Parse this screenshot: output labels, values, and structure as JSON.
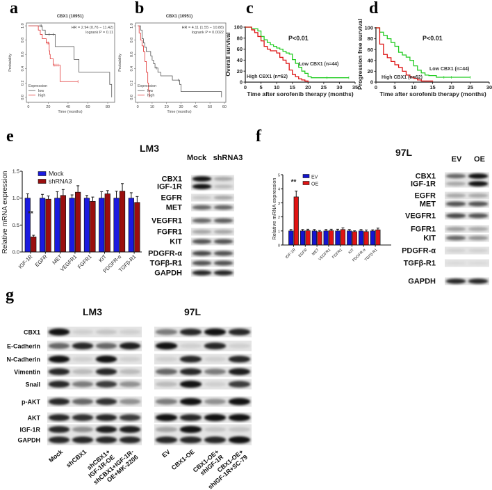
{
  "panel_labels": [
    "a",
    "b",
    "c",
    "d",
    "e",
    "f",
    "g"
  ],
  "colors": {
    "km_low": "#555555",
    "km_high": "#e03030",
    "gp_low": "#22cc22",
    "gp_high": "#dd1111",
    "e_mock": "#1a1ae0",
    "e_sh": "#9a0e0e",
    "f_ev": "#1414d0",
    "f_oe": "#e01414"
  },
  "chart_data": [
    {
      "type": "line",
      "title": "CBX1 (10951)",
      "xlabel": "Time (months)",
      "ylabel": "Probability",
      "xlim": [
        0,
        85
      ],
      "ylim": [
        0,
        1
      ],
      "xticks": [
        "0",
        "20",
        "40",
        "60",
        "80"
      ],
      "yticks": [
        "0.0",
        "0.2",
        "0.4",
        "0.6",
        "0.8",
        "1.0"
      ],
      "annotations": [
        "HR = 2.94 (0.76 − 11.42)",
        "logrank P = 0.11"
      ],
      "legend_title": "Expression",
      "series": [
        {
          "name": "low",
          "points": [
            [
              0,
              1
            ],
            [
              14,
              0.94
            ],
            [
              17,
              0.88
            ],
            [
              27,
              0.71
            ],
            [
              46,
              0.53
            ],
            [
              51,
              0.35
            ],
            [
              82,
              0.18
            ],
            [
              84,
              0
            ]
          ],
          "censored": [
            12,
            13,
            21,
            25
          ]
        },
        {
          "name": "high",
          "points": [
            [
              0,
              1
            ],
            [
              10,
              0.94
            ],
            [
              12,
              0.88
            ],
            [
              14,
              0.82
            ],
            [
              18,
              0.76
            ],
            [
              21,
              0.65
            ],
            [
              21.5,
              0.6
            ],
            [
              22,
              0.54
            ],
            [
              25,
              0.45
            ],
            [
              32,
              0.22
            ],
            [
              50,
              0.22
            ]
          ],
          "censored": [
            19,
            20,
            26,
            28,
            30,
            50
          ]
        }
      ]
    },
    {
      "type": "line",
      "title": "CBX1 (10951)",
      "xlabel": "Time (months)",
      "ylabel": "Probability",
      "xlim": [
        0,
        60
      ],
      "ylim": [
        0,
        1
      ],
      "xticks": [
        "0",
        "10",
        "20",
        "30",
        "40",
        "50",
        "60"
      ],
      "yticks": [
        "0.0",
        "0.2",
        "0.4",
        "0.6",
        "0.8",
        "1.0"
      ],
      "annotations": [
        "HR = 4.11 (1.55 − 10.88)",
        "logrank P = 0.0022"
      ],
      "legend_title": "Expression",
      "series": [
        {
          "name": "low",
          "points": [
            [
              0,
              1
            ],
            [
              2,
              0.94
            ],
            [
              3,
              0.82
            ],
            [
              4,
              0.76
            ],
            [
              5,
              0.7
            ],
            [
              6,
              0.64
            ],
            [
              9,
              0.58
            ],
            [
              10,
              0.52
            ],
            [
              11,
              0.47
            ],
            [
              12,
              0.41
            ],
            [
              14,
              0.35
            ],
            [
              16,
              0.3
            ],
            [
              24,
              0.24
            ],
            [
              29,
              0.18
            ],
            [
              30,
              0.08
            ],
            [
              58,
              0
            ]
          ],
          "censored": [
            13,
            28
          ]
        },
        {
          "name": "high",
          "points": [
            [
              0,
              1
            ],
            [
              1,
              0.9
            ],
            [
              2,
              0.8
            ],
            [
              3,
              0.72
            ],
            [
              4,
              0.64
            ],
            [
              5,
              0.5
            ],
            [
              6,
              0.35
            ],
            [
              7,
              0.2
            ],
            [
              7.5,
              0.1
            ],
            [
              8,
              0
            ]
          ],
          "censored": []
        }
      ]
    },
    {
      "type": "line",
      "title": "",
      "xlabel": "Time after sorofenib therapy (months)",
      "ylabel": "Overall survival",
      "xlim": [
        0,
        35
      ],
      "ylim": [
        0,
        100
      ],
      "xticks": [
        "0",
        "5",
        "10",
        "15",
        "20",
        "25",
        "30",
        "35"
      ],
      "yticks": [
        "0",
        "20",
        "40",
        "60",
        "80",
        "100"
      ],
      "annotations": [
        "P<0.01"
      ],
      "series": [
        {
          "name": "Low CBX1 (n=44)",
          "points": [
            [
              0,
              100
            ],
            [
              2,
              97
            ],
            [
              4,
              93
            ],
            [
              5,
              83
            ],
            [
              6,
              77
            ],
            [
              7,
              72
            ],
            [
              8,
              68
            ],
            [
              9,
              65
            ],
            [
              10,
              62
            ],
            [
              11,
              60
            ],
            [
              12,
              56
            ],
            [
              13,
              53
            ],
            [
              14,
              51
            ],
            [
              15,
              41
            ],
            [
              16,
              34
            ],
            [
              17,
              27
            ],
            [
              18,
              20
            ],
            [
              19,
              16
            ],
            [
              20,
              10
            ],
            [
              21,
              8
            ],
            [
              33,
              8
            ]
          ],
          "censored": [
            26,
            33
          ]
        },
        {
          "name": "High CBX1 (n=62)",
          "points": [
            [
              0,
              100
            ],
            [
              2,
              95
            ],
            [
              3,
              90
            ],
            [
              4,
              83
            ],
            [
              5,
              75
            ],
            [
              6,
              65
            ],
            [
              7,
              60
            ],
            [
              8,
              57
            ],
            [
              10,
              53
            ],
            [
              11,
              45
            ],
            [
              12,
              40
            ],
            [
              13,
              34
            ],
            [
              14,
              22
            ],
            [
              15,
              14
            ],
            [
              16,
              10
            ],
            [
              17,
              6
            ],
            [
              18,
              4
            ],
            [
              19,
              2
            ],
            [
              20,
              0
            ]
          ],
          "censored": []
        }
      ]
    },
    {
      "type": "line",
      "title": "",
      "xlabel": "Time after sorofenib therapy (months)",
      "ylabel": "Progression free survival",
      "xlim": [
        0,
        30
      ],
      "ylim": [
        0,
        100
      ],
      "xticks": [
        "0",
        "5",
        "10",
        "15",
        "20",
        "25",
        "30"
      ],
      "yticks": [
        "0",
        "20",
        "40",
        "60",
        "80",
        "100"
      ],
      "annotations": [
        "P<0.01"
      ],
      "series": [
        {
          "name": "Low CBX1 (n=44)",
          "points": [
            [
              0,
              100
            ],
            [
              1,
              92
            ],
            [
              2,
              86
            ],
            [
              3,
              80
            ],
            [
              4,
              73
            ],
            [
              5,
              66
            ],
            [
              6,
              55
            ],
            [
              7,
              50
            ],
            [
              8,
              46
            ],
            [
              9,
              40
            ],
            [
              10,
              30
            ],
            [
              11,
              22
            ],
            [
              12,
              17
            ],
            [
              13,
              13
            ],
            [
              14,
              12
            ],
            [
              16,
              9
            ],
            [
              25,
              9
            ]
          ],
          "censored": [
            18,
            20,
            25
          ]
        },
        {
          "name": "High CBX1 (n=62)",
          "points": [
            [
              0,
              100
            ],
            [
              1,
              70
            ],
            [
              2,
              51
            ],
            [
              3,
              45
            ],
            [
              4,
              38
            ],
            [
              5,
              32
            ],
            [
              6,
              27
            ],
            [
              7,
              20
            ],
            [
              8,
              13
            ],
            [
              9,
              9
            ],
            [
              10,
              7
            ],
            [
              11,
              4
            ],
            [
              12,
              2
            ],
            [
              15,
              1
            ]
          ],
          "censored": []
        }
      ]
    },
    {
      "type": "bar",
      "title": "",
      "xlabel": "",
      "ylabel": "Relative mRNA expression",
      "ylim": [
        0,
        1.5
      ],
      "yticks": [
        "0.0",
        "0.5",
        "1.0",
        "1.5"
      ],
      "categories": [
        "IGF-1R",
        "EGFR",
        "MET",
        "VEGFR1",
        "FGFR1",
        "KIT",
        "PDGFR-α",
        "TGFβ-R1"
      ],
      "significance": [
        {
          "category": "IGF-1R",
          "label": "**"
        }
      ],
      "series": [
        {
          "name": "Mock",
          "values": [
            1,
            1,
            1,
            1,
            1,
            1,
            1,
            1
          ],
          "errors": [
            0.08,
            0.07,
            0.12,
            0.06,
            0.05,
            0.12,
            0.13,
            0.1
          ]
        },
        {
          "name": "shRNA3",
          "values": [
            0.28,
            0.98,
            1.05,
            1.11,
            0.94,
            1.08,
            1.13,
            0.92
          ],
          "errors": [
            0.03,
            0.06,
            0.11,
            0.12,
            0.08,
            0.06,
            0.14,
            0.11
          ]
        }
      ]
    },
    {
      "type": "bar",
      "title": "",
      "xlabel": "",
      "ylabel": "Relative mRNA expression",
      "ylim": [
        0,
        5
      ],
      "yticks": [
        "0",
        "1",
        "2",
        "3",
        "4",
        "5"
      ],
      "categories": [
        "IGF-1R",
        "EGFR",
        "MET",
        "VEGFR1",
        "FGFR1",
        "KIT",
        "PDGFR-α",
        "TGFβ-R1"
      ],
      "significance": [
        {
          "category": "IGF-1R",
          "label": "**"
        }
      ],
      "series": [
        {
          "name": "EV",
          "values": [
            1,
            1,
            1,
            1,
            1,
            1,
            1,
            1
          ],
          "errors": [
            0.1,
            0.1,
            0.1,
            0.1,
            0.12,
            0.1,
            0.1,
            0.08
          ]
        },
        {
          "name": "OE",
          "values": [
            3.42,
            1.02,
            0.95,
            1.02,
            1.1,
            0.95,
            0.95,
            1.08
          ],
          "errors": [
            0.42,
            0.1,
            0.08,
            0.1,
            0.12,
            0.06,
            0.12,
            0.12
          ]
        }
      ]
    }
  ],
  "blots": {
    "e": {
      "title": "LM3",
      "lanes": [
        "Mock",
        "shRNA3"
      ],
      "rows": [
        {
          "label": "CBX1",
          "bands": [
            1,
            0.3
          ]
        },
        {
          "label": "IGF-1R",
          "bands": [
            1,
            0.2
          ]
        },
        {
          "label": "EGFR",
          "bands": [
            0.15,
            0.3
          ]
        },
        {
          "label": "MET",
          "bands": [
            0.6,
            0.6
          ]
        },
        {
          "label": "VEGFR1",
          "bands": [
            0.6,
            0.65
          ]
        },
        {
          "label": "FGFR1",
          "bands": [
            0.3,
            0.3
          ]
        },
        {
          "label": "KIT",
          "bands": [
            0.7,
            0.7
          ]
        },
        {
          "label": "PDGFR-α",
          "bands": [
            0.75,
            0.7
          ]
        },
        {
          "label": "TGFβ-R1",
          "bands": [
            0.7,
            0.7
          ]
        },
        {
          "label": "GAPDH",
          "bands": [
            0.9,
            0.9
          ]
        }
      ]
    },
    "f": {
      "title": "97L",
      "lanes": [
        "EV",
        "OE"
      ],
      "rows": [
        {
          "label": "CBX1",
          "bands": [
            0.6,
            1
          ]
        },
        {
          "label": "IGF-1R",
          "bands": [
            0.3,
            1
          ]
        },
        {
          "label": "EGFR",
          "bands": [
            0.3,
            0.3
          ]
        },
        {
          "label": "MET",
          "bands": [
            0.7,
            0.7
          ]
        },
        {
          "label": "VEGFR1",
          "bands": [
            0.75,
            0.7
          ]
        },
        {
          "label": "FGFR1",
          "bands": [
            0.35,
            0.3
          ]
        },
        {
          "label": "KIT",
          "bands": [
            0.6,
            0.4
          ]
        },
        {
          "label": "PDGFR-α",
          "bands": [
            0.1,
            0.1
          ]
        },
        {
          "label": "TGFβ-R1",
          "bands": [
            0.05,
            0.05
          ]
        },
        {
          "label": "GAPDH",
          "bands": [
            0.9,
            0.9
          ]
        }
      ]
    },
    "g_lm3": {
      "title": "LM3",
      "lanes": [
        [
          "Mock"
        ],
        [
          "shCBX1"
        ],
        [
          "shCBX1+",
          "IGF-1R-OE"
        ],
        [
          "shCBX1+IGF-1R-",
          "OE+MK-2206"
        ]
      ],
      "rows": [
        {
          "label": "CBX1",
          "bands": [
            1,
            0.1,
            0.15,
            0.1
          ]
        },
        {
          "label": "E-Cadherin",
          "bands": [
            0.6,
            0.9,
            0.6,
            0.95
          ]
        },
        {
          "label": "N-Cadherin",
          "bands": [
            1,
            0.1,
            1,
            0.1
          ]
        },
        {
          "label": "Vimentin",
          "bands": [
            0.9,
            0.2,
            0.9,
            0.2
          ]
        },
        {
          "label": "Snail",
          "bands": [
            0.9,
            0.5,
            0.8,
            0.4
          ]
        },
        {
          "label": "p-AKT",
          "bands": [
            0.9,
            0.6,
            0.85,
            0.4
          ]
        },
        {
          "label": "AKT",
          "bands": [
            0.9,
            0.85,
            0.9,
            0.8
          ]
        },
        {
          "label": "IGF-1R",
          "bands": [
            0.9,
            0.4,
            0.95,
            0.95
          ]
        },
        {
          "label": "GAPDH",
          "bands": [
            0.9,
            0.9,
            0.9,
            0.9
          ]
        }
      ]
    },
    "g_97l": {
      "title": "97L",
      "lanes": [
        [
          "EV"
        ],
        [
          "CBX1-OE"
        ],
        [
          "CBX1-OE+",
          "shIGF-1R"
        ],
        [
          "CBX1-OE+",
          "shIGF-1R+SC-79"
        ]
      ],
      "rows": [
        {
          "bands": [
            0.5,
            0.9,
            1,
            0.9
          ]
        },
        {
          "bands": [
            1,
            0.1,
            0.9,
            0.1
          ]
        },
        {
          "bands": [
            0.1,
            0.9,
            0.1,
            0.9
          ]
        },
        {
          "bands": [
            0.6,
            0.9,
            0.5,
            0.95
          ]
        },
        {
          "bands": [
            0.2,
            1,
            0.1,
            0.8
          ]
        },
        {
          "bands": [
            0.5,
            1,
            0.4,
            1
          ]
        },
        {
          "bands": [
            1,
            0.9,
            1,
            1
          ]
        },
        {
          "bands": [
            0.3,
            1,
            0.15,
            0.15
          ]
        },
        {
          "bands": [
            0.9,
            0.9,
            0.9,
            1
          ]
        }
      ]
    }
  }
}
